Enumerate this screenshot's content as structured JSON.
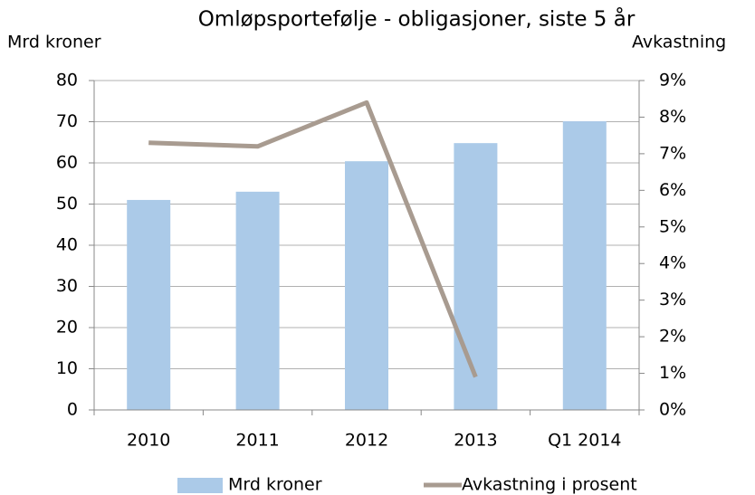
{
  "chart_data": {
    "type": "bar-line",
    "title": "Omløpsportefølje - obligasjoner, siste 5 år",
    "y_label": "Mrd kroner",
    "y2_label": "Avkastning",
    "categories": [
      "2010",
      "2011",
      "2012",
      "2013",
      "Q1 2014"
    ],
    "series": [
      {
        "name": "Mrd kroner",
        "type": "bar",
        "color": "#abcae8",
        "values": [
          51,
          53,
          60.4,
          64.8,
          70.1
        ]
      },
      {
        "name": "Avkastning i prosent",
        "type": "line",
        "axis": "y2",
        "color": "#a89b90",
        "values": [
          7.3,
          7.2,
          8.4,
          0.9,
          null
        ]
      }
    ],
    "ylim": [
      0,
      80
    ],
    "yticks": [
      0,
      10,
      20,
      30,
      40,
      50,
      60,
      70,
      80
    ],
    "y2lim": [
      0,
      9
    ],
    "y2ticks": [
      {
        "value": 0,
        "label": "0%"
      },
      {
        "value": 1,
        "label": "1%"
      },
      {
        "value": 2,
        "label": "2%"
      },
      {
        "value": 3,
        "label": "3%"
      },
      {
        "value": 4,
        "label": "4%"
      },
      {
        "value": 5,
        "label": "5%"
      },
      {
        "value": 6,
        "label": "6%"
      },
      {
        "value": 7,
        "label": "7%"
      },
      {
        "value": 8,
        "label": "8%"
      },
      {
        "value": 9,
        "label": "9%"
      }
    ],
    "grid": true,
    "legend": "bottom"
  }
}
